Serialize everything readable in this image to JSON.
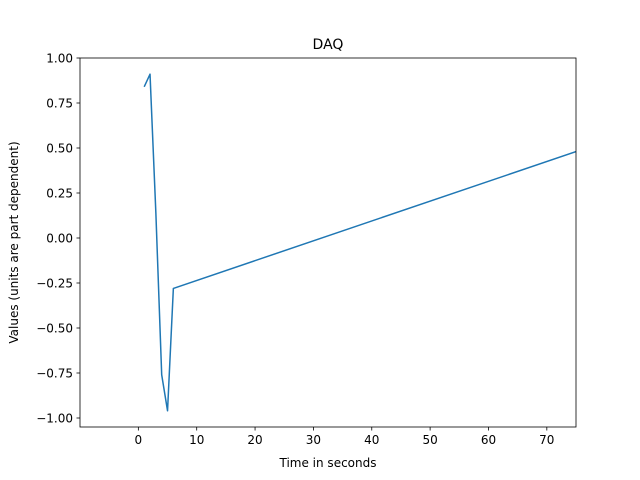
{
  "chart_data": {
    "type": "line",
    "title": "DAQ",
    "xlabel": "Time in seconds",
    "ylabel": "Values (units are part dependent)",
    "xlim": [
      -10,
      75
    ],
    "ylim": [
      -1.05,
      1.0
    ],
    "x_ticks": [
      0,
      10,
      20,
      30,
      40,
      50,
      60,
      70
    ],
    "y_ticks": [
      -1.0,
      -0.75,
      -0.5,
      -0.25,
      0.0,
      0.25,
      0.5,
      0.75,
      1.0
    ],
    "x_tick_labels": [
      "0",
      "10",
      "20",
      "30",
      "40",
      "50",
      "60",
      "70"
    ],
    "y_tick_labels": [
      "−1.00",
      "−0.75",
      "−0.50",
      "−0.25",
      "0.00",
      "0.25",
      "0.50",
      "0.75",
      "1.00"
    ],
    "grid": false,
    "series": [
      {
        "color": "#1f77b4",
        "x": [
          1,
          2,
          3,
          4,
          5,
          6,
          75
        ],
        "y": [
          0.84,
          0.91,
          0.14,
          -0.76,
          -0.96,
          -0.28,
          0.48
        ]
      }
    ]
  }
}
